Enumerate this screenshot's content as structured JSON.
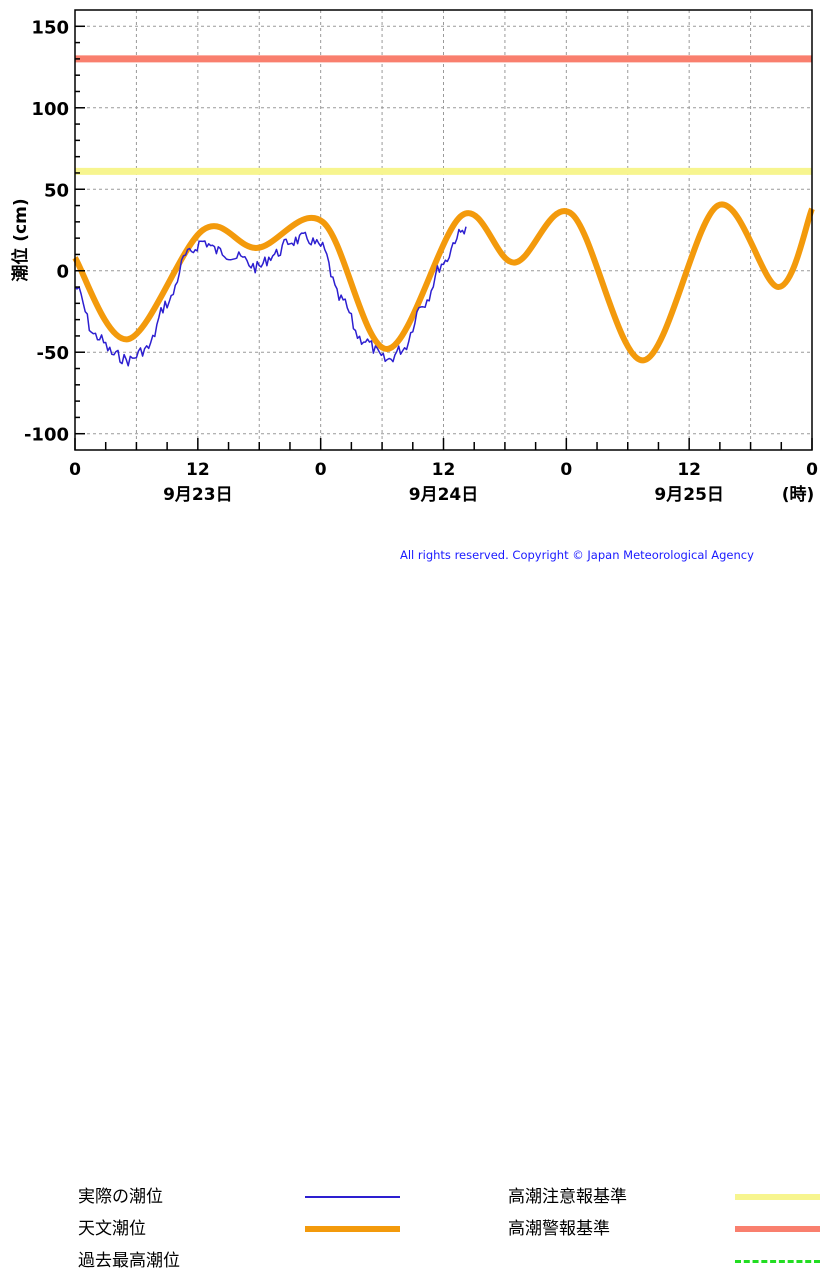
{
  "chart_data": {
    "type": "line",
    "ylabel": "潮位 (cm)",
    "xunit": "(時)",
    "yticks": [
      150,
      100,
      50,
      0,
      -50,
      -100
    ],
    "ylim": [
      -110,
      160
    ],
    "xlim": [
      0,
      72
    ],
    "xticks": [
      {
        "hour": 0,
        "label": "0"
      },
      {
        "hour": 12,
        "label": "12"
      },
      {
        "hour": 24,
        "label": "0"
      },
      {
        "hour": 36,
        "label": "12"
      },
      {
        "hour": 48,
        "label": "0"
      },
      {
        "hour": 60,
        "label": "12"
      },
      {
        "hour": 72,
        "label": "0"
      }
    ],
    "date_labels": [
      {
        "hour": 12,
        "label": "9月23日"
      },
      {
        "hour": 36,
        "label": "9月24日"
      },
      {
        "hour": 60,
        "label": "9月25日"
      }
    ],
    "grid": true,
    "thresholds": [
      {
        "name": "高潮警報基準",
        "value": 130,
        "color": "#f97f6e"
      },
      {
        "name": "高潮注意報基準",
        "value": 61,
        "color": "#f7f58f"
      }
    ],
    "series": [
      {
        "name": "天文潮位",
        "color": "#f39a0c",
        "x": [
          0,
          5.2,
          12.5,
          17.8,
          24.2,
          30.5,
          37.8,
          42.9,
          48.5,
          55.5,
          62.8,
          68.7,
          72
        ],
        "y": [
          8,
          -42,
          25,
          14,
          30,
          -48,
          34,
          5,
          35,
          -55,
          40,
          -10,
          38
        ]
      },
      {
        "name": "実際の潮位",
        "color": "#2d1fd0",
        "x": [
          0,
          2,
          4,
          5.2,
          7,
          9,
          11,
          12.5,
          14,
          16,
          17.8,
          19.5,
          21,
          22.5,
          24,
          26,
          28,
          30.5,
          32,
          34,
          36,
          37.5,
          38.2
        ],
        "y": [
          -10,
          -40,
          -52,
          -55,
          -48,
          -20,
          10,
          18,
          12,
          8,
          2,
          10,
          18,
          20,
          15,
          -18,
          -42,
          -55,
          -48,
          -20,
          5,
          22,
          27
        ]
      }
    ],
    "legend": [
      {
        "label": "実際の潮位",
        "style": "solid-thin",
        "color": "#2d1fd0"
      },
      {
        "label": "天文潮位",
        "style": "solid-thick",
        "color": "#f39a0c"
      },
      {
        "label": "過去最高潮位",
        "style": "dashed",
        "color": "#22dd22"
      },
      {
        "label": "高潮注意報基準",
        "style": "solid-thick",
        "color": "#f7f58f"
      },
      {
        "label": "高潮警報基準",
        "style": "solid-thick",
        "color": "#f97f6e"
      }
    ],
    "copyright": "All rights reserved. Copyright © Japan Meteorological Agency"
  }
}
